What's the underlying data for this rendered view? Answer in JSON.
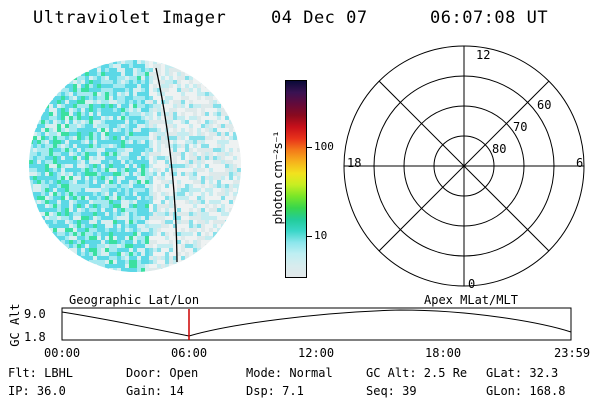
{
  "header": {
    "title": "Ultraviolet Imager",
    "date": "04 Dec 07",
    "time": "06:07:08 UT"
  },
  "colorbar": {
    "unit": "photon cm⁻²s⁻¹",
    "tick_labels": [
      "100",
      "10"
    ],
    "colors": [
      "#0a0a38",
      "#3a1252",
      "#640a3a",
      "#8a0a1e",
      "#c8101a",
      "#e8321a",
      "#f47a1a",
      "#f6b21c",
      "#f2e21e",
      "#c8ee22",
      "#7ae628",
      "#38d64c",
      "#22cc9a",
      "#3ad6c8",
      "#8ce6ec",
      "#bfeff2",
      "#d7ecee",
      "#e2e8ea"
    ]
  },
  "polar_plot": {
    "clock_labels": [
      "12",
      "18",
      "6",
      "0"
    ],
    "latitude_labels": [
      "60",
      "70",
      "80"
    ]
  },
  "timeline": {
    "left_axis_title": "GC Alt",
    "y_ticks": [
      "9.0",
      "1.8"
    ],
    "left_caption": "Geographic Lat/Lon",
    "right_caption": "Apex MLat/MLT",
    "x_ticks": [
      "00:00",
      "06:00",
      "12:00",
      "18:00",
      "23:59"
    ],
    "current_time_color": "#cc0000"
  },
  "info_panel": {
    "filter": "Flt: LBHL",
    "door": "Door: Open",
    "mode": "Mode: Normal",
    "gc_alt": "GC Alt: 2.5 Re",
    "glat": "GLat:  32.3",
    "ip": "IP: 36.0",
    "gain": "Gain: 14",
    "dsp": "Dsp:    7.1",
    "seq": "Seq: 39",
    "glon": "GLon: 168.8"
  }
}
